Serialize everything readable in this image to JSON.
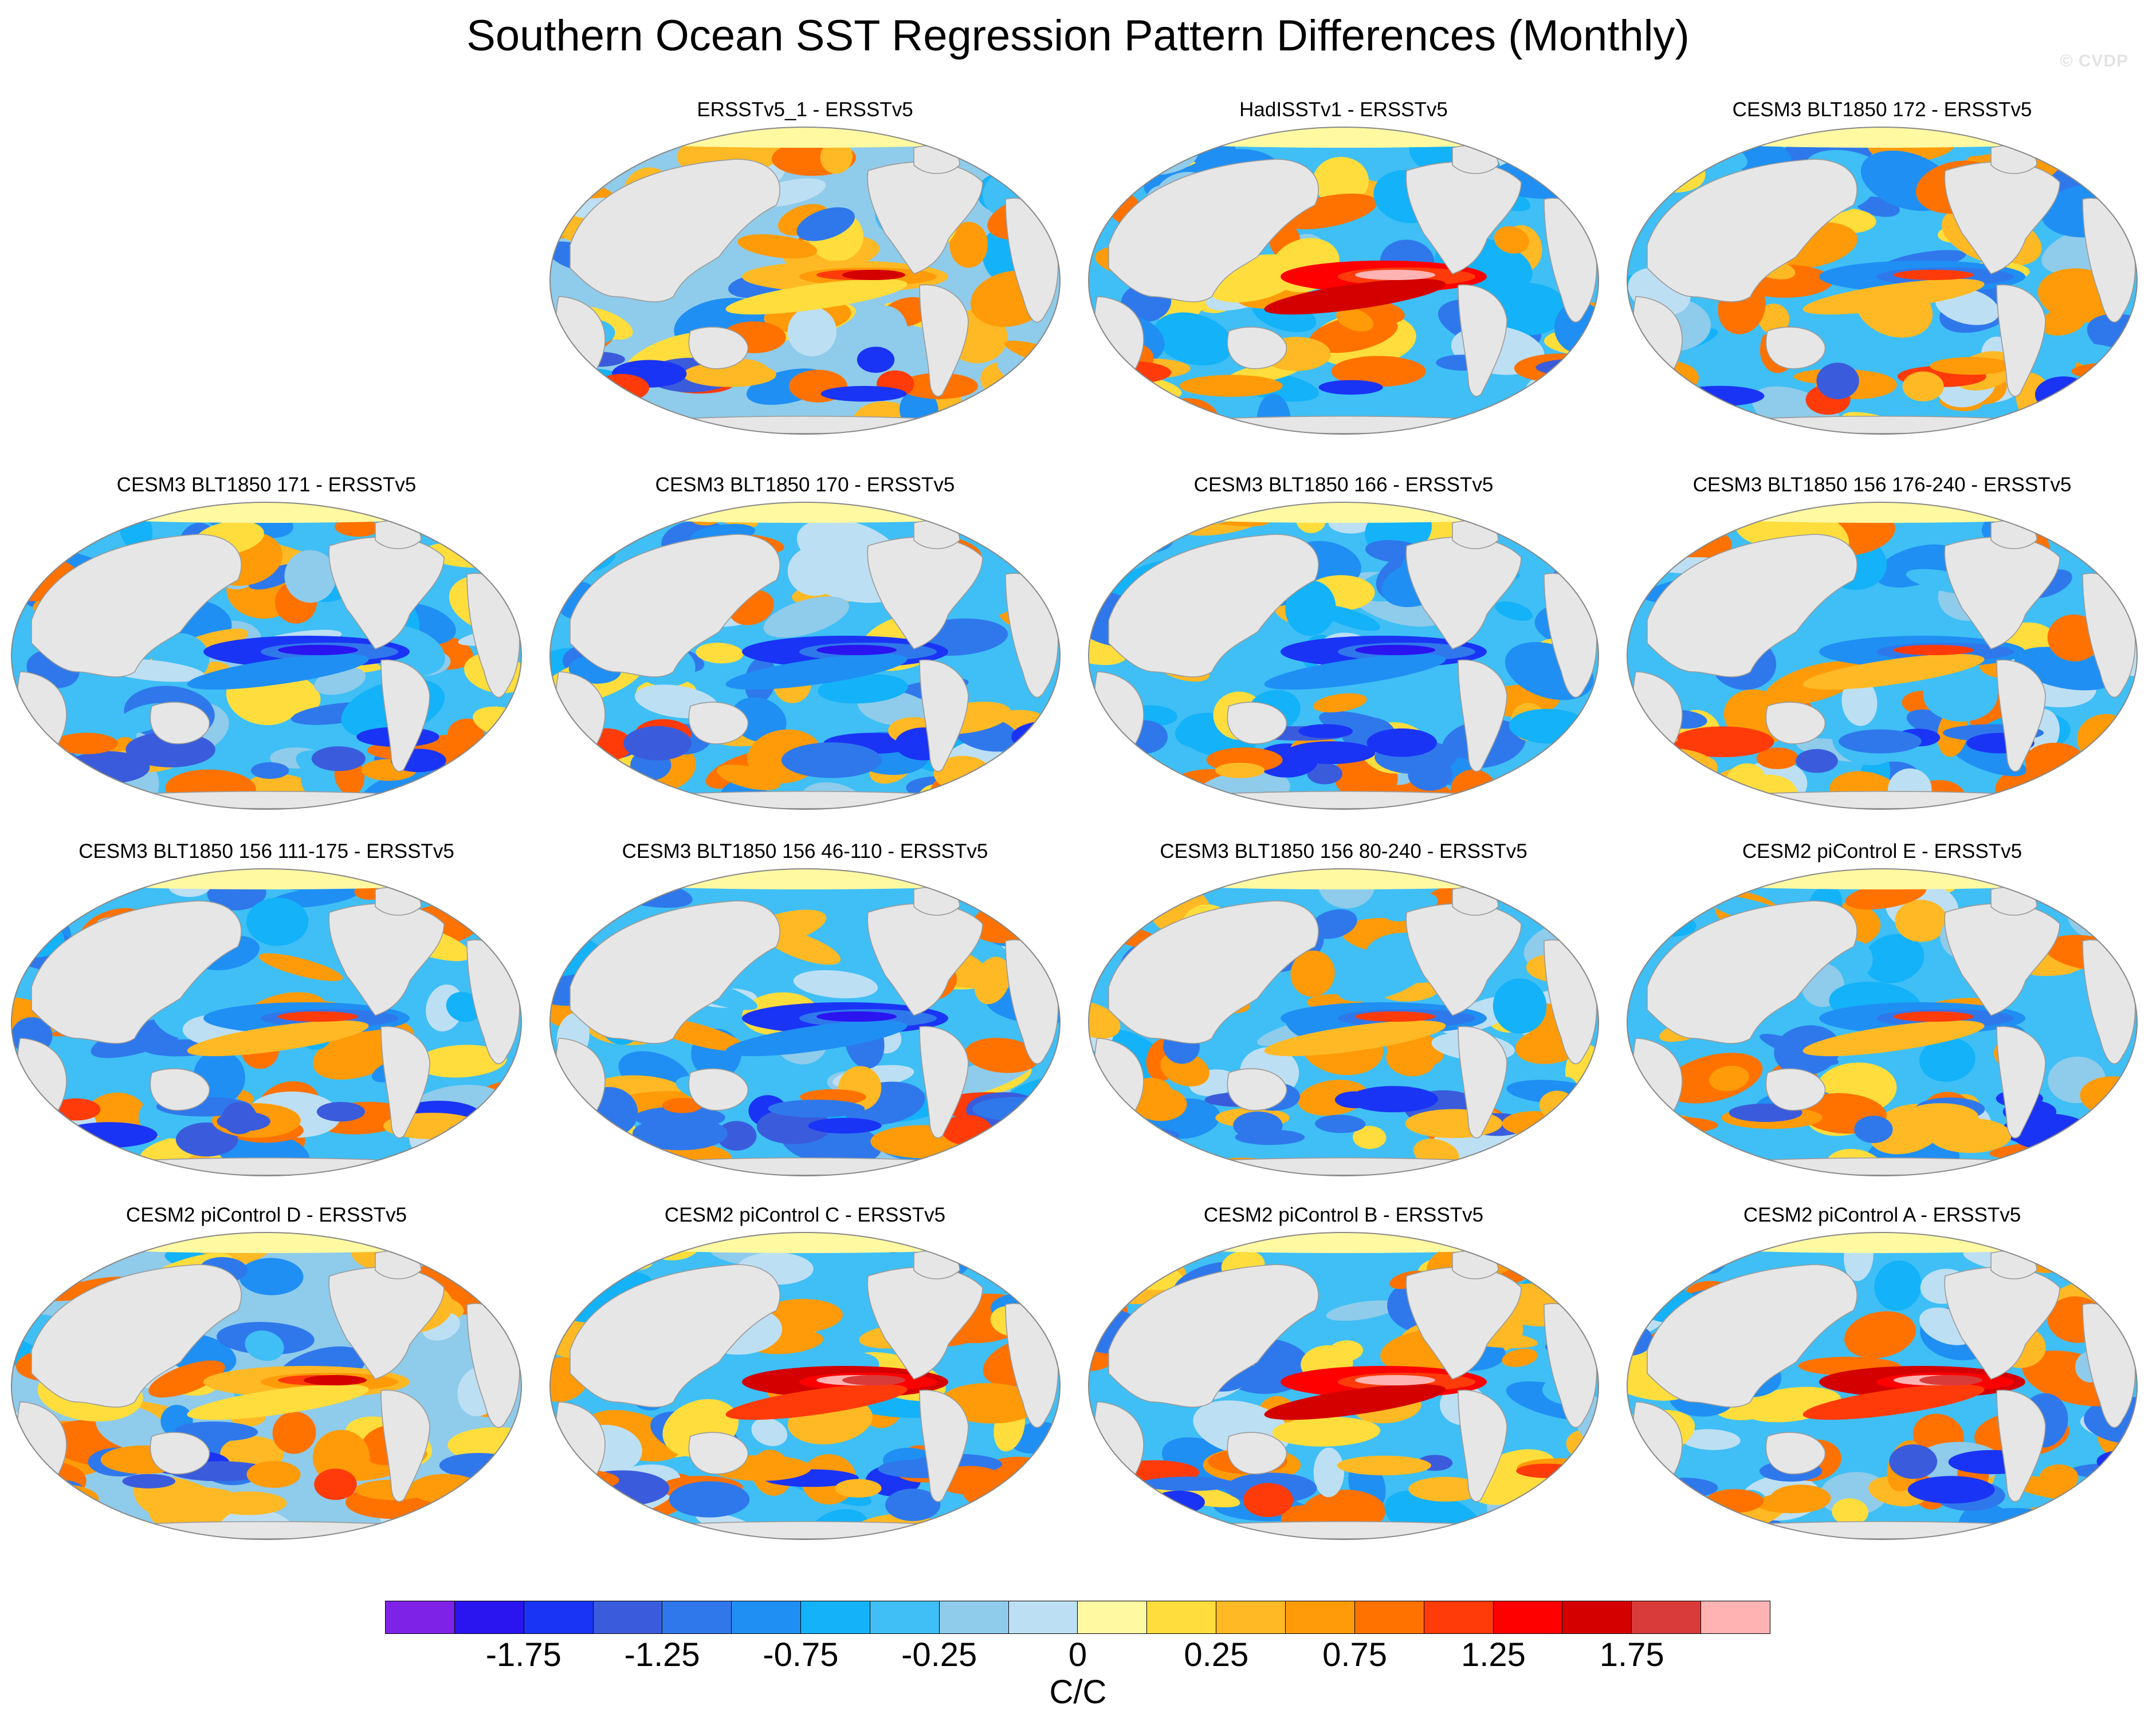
{
  "figure": {
    "title": "Southern Ocean SST Regression Pattern Differences (Monthly)",
    "watermark": "© CVDP"
  },
  "panels": [
    {
      "title": "ERSSTv5_1 - ERSSTv5",
      "pattern": "mixed_warm"
    },
    {
      "title": "HadISSTv1 - ERSSTv5",
      "pattern": "el_nino_warm"
    },
    {
      "title": "CESM3 BLT1850 172 - ERSSTv5",
      "pattern": "mixed"
    },
    {
      "title": "CESM3 BLT1850 171 - ERSSTv5",
      "pattern": "cool_equator"
    },
    {
      "title": "CESM3 BLT1850 170 - ERSSTv5",
      "pattern": "cool_equator"
    },
    {
      "title": "CESM3 BLT1850 166 - ERSSTv5",
      "pattern": "cool_equator"
    },
    {
      "title": "CESM3 BLT1850 156 176-240 - ERSSTv5",
      "pattern": "mixed"
    },
    {
      "title": "CESM3 BLT1850 156 111-175 - ERSSTv5",
      "pattern": "mixed"
    },
    {
      "title": "CESM3 BLT1850 156 46-110 - ERSSTv5",
      "pattern": "cool_equator"
    },
    {
      "title": "CESM3 BLT1850 156 80-240 - ERSSTv5",
      "pattern": "mixed"
    },
    {
      "title": "CESM2 piControl E - ERSSTv5",
      "pattern": "mixed"
    },
    {
      "title": "CESM2 piControl D - ERSSTv5",
      "pattern": "mixed_warm"
    },
    {
      "title": "CESM2 piControl C - ERSSTv5",
      "pattern": "el_nino_strong"
    },
    {
      "title": "CESM2 piControl B - ERSSTv5",
      "pattern": "el_nino_warm"
    },
    {
      "title": "CESM2 piControl A - ERSSTv5",
      "pattern": "el_nino_strong"
    }
  ],
  "colorbar": {
    "colors": [
      "#7d22e6",
      "#2a14f0",
      "#1a34f5",
      "#3a5cdc",
      "#2f78ec",
      "#1f8ff4",
      "#14b2f8",
      "#3fbff5",
      "#8fcbea",
      "#bddff3",
      "#fff9a2",
      "#ffdd3c",
      "#ffb924",
      "#ff9b08",
      "#ff7200",
      "#ff3b0a",
      "#ff0000",
      "#d40000",
      "#d93b3b",
      "#ffb3b3"
    ],
    "labels": [
      "-1.75",
      "-1.25",
      "-0.75",
      "-0.25",
      "0",
      "0.25",
      "0.75",
      "1.25",
      "1.75"
    ],
    "units": "C/C"
  }
}
